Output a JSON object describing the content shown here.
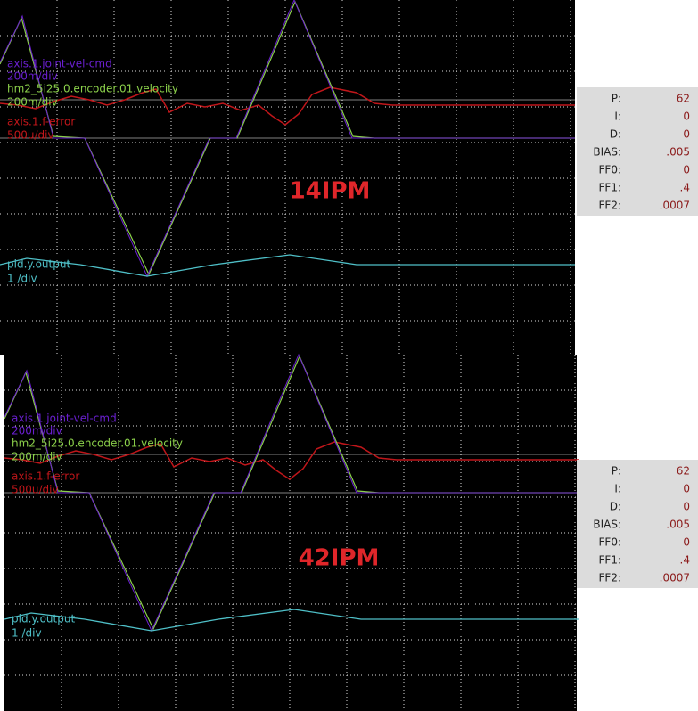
{
  "panels": [
    {
      "speed_label": "14IPM",
      "channels": [
        {
          "name": "axis.1.joint-vel-cmd",
          "scale": "200m/div"
        },
        {
          "name": "hm2_5i25.0.encoder.01.velocity",
          "scale": "200m/div"
        },
        {
          "name": "axis.1.f-error",
          "scale": "500u/div"
        },
        {
          "name": "pid.y.output",
          "scale": "1 /div"
        }
      ],
      "params": [
        {
          "name": "P:",
          "value": "62"
        },
        {
          "name": "I:",
          "value": "0"
        },
        {
          "name": "D:",
          "value": "0"
        },
        {
          "name": "BIAS:",
          "value": ".005"
        },
        {
          "name": "FF0:",
          "value": "0"
        },
        {
          "name": "FF1:",
          "value": ".4"
        },
        {
          "name": "FF2:",
          "value": ".0007"
        }
      ]
    },
    {
      "speed_label": "42IPM",
      "channels": [
        {
          "name": "axis.1.joint-vel-cmd",
          "scale": "200m/div"
        },
        {
          "name": "hm2_5i25.0.encoder.01.velocity",
          "scale": "200m/div"
        },
        {
          "name": "axis.1.f-error",
          "scale": "500u/div"
        },
        {
          "name": "pid.y.output",
          "scale": "1 /div"
        }
      ],
      "params": [
        {
          "name": "P:",
          "value": "62"
        },
        {
          "name": "I:",
          "value": "0"
        },
        {
          "name": "D:",
          "value": "0"
        },
        {
          "name": "BIAS:",
          "value": ".005"
        },
        {
          "name": "FF0:",
          "value": "0"
        },
        {
          "name": "FF1:",
          "value": ".4"
        },
        {
          "name": "FF2:",
          "value": ".0007"
        }
      ]
    }
  ]
}
